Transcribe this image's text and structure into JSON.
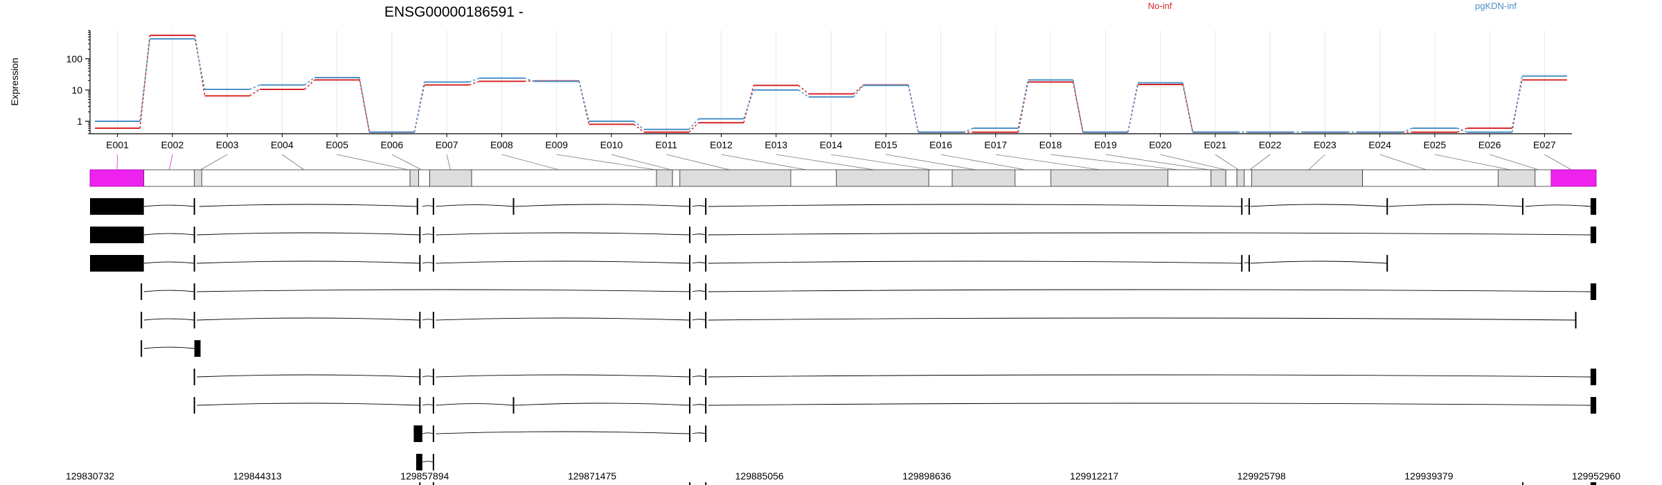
{
  "chart_data": {
    "type": "line",
    "title": "ENSG00000186591 -",
    "ylabel": "Expression",
    "y_scale": "log10",
    "ylim": [
      0.4,
      800
    ],
    "y_ticks": [
      {
        "value": 1,
        "label": "1"
      },
      {
        "value": 10,
        "label": "10"
      },
      {
        "value": 100,
        "label": "100"
      }
    ],
    "categories": [
      "E001",
      "E002",
      "E003",
      "E004",
      "E005",
      "E006",
      "E007",
      "E008",
      "E009",
      "E010",
      "E011",
      "E012",
      "E013",
      "E014",
      "E015",
      "E016",
      "E017",
      "E018",
      "E019",
      "E020",
      "E021",
      "E022",
      "E023",
      "E024",
      "E025",
      "E026",
      "E027"
    ],
    "series": [
      {
        "name": "No-inf",
        "color": "#d62728",
        "values": [
          0.6,
          560,
          6.5,
          10.5,
          21,
          0.45,
          14.5,
          19,
          19.5,
          0.8,
          0.45,
          0.9,
          14,
          7.5,
          14.5,
          0.45,
          0.45,
          18,
          0.45,
          15,
          0.45,
          0.45,
          0.45,
          0.45,
          0.45,
          0.6,
          21
        ]
      },
      {
        "name": "pgKDN-inf",
        "color": "#4a90c8",
        "values": [
          1.0,
          430,
          10.5,
          14.5,
          25,
          0.45,
          18,
          24,
          19,
          1.0,
          0.55,
          1.2,
          10,
          6,
          14,
          0.45,
          0.6,
          21,
          0.45,
          17,
          0.45,
          0.45,
          0.45,
          0.45,
          0.6,
          0.45,
          28
        ]
      }
    ],
    "legend": "top",
    "grid": "vertical",
    "genomic_ticks": [
      "129830732",
      "129844313",
      "129857894",
      "129871475",
      "129885056",
      "129898636",
      "129912217",
      "129925798",
      "129939379",
      "129952960"
    ],
    "genomic_range": [
      129830732,
      129952960
    ],
    "exon_blocks_bp": [
      [
        129830732,
        129835100
      ],
      [
        129835100,
        129839200
      ],
      [
        129839200,
        129839800
      ],
      [
        129839800,
        129856700
      ],
      [
        129856700,
        129857400
      ],
      [
        129857400,
        129858300
      ],
      [
        129858300,
        129861700
      ],
      [
        129861700,
        129876700
      ],
      [
        129876700,
        129878000
      ],
      [
        129878000,
        129878600
      ],
      [
        129878600,
        129887600
      ],
      [
        129887600,
        129891300
      ],
      [
        129891300,
        129898800
      ],
      [
        129898800,
        129900700
      ],
      [
        129900700,
        129905800
      ],
      [
        129905800,
        129908700
      ],
      [
        129908700,
        129918200
      ],
      [
        129918200,
        129921700
      ],
      [
        129921700,
        129922900
      ],
      [
        129922900,
        129923800
      ],
      [
        129923800,
        129924400
      ],
      [
        129924400,
        129925000
      ],
      [
        129925000,
        129934000
      ],
      [
        129934000,
        129945000
      ],
      [
        129945000,
        129948000
      ],
      [
        129948000,
        129949300
      ],
      [
        129949300,
        129952960
      ]
    ],
    "transcripts": [
      {
        "exons": [
          [
            129830732,
            129835100,
            1
          ],
          [
            129839200,
            129839600,
            0
          ],
          [
            129857300,
            129857700,
            0
          ],
          [
            129858600,
            129858800,
            0
          ],
          [
            129865100,
            129865200,
            0
          ],
          [
            129879400,
            129879600,
            0
          ],
          [
            129880700,
            129880900,
            0
          ],
          [
            129924200,
            129924400,
            0
          ],
          [
            129924800,
            129924900,
            0
          ],
          [
            129936000,
            129936100,
            0
          ],
          [
            129947000,
            129947200,
            0
          ],
          [
            129952500,
            129952960,
            1
          ]
        ]
      },
      {
        "exons": [
          [
            129830732,
            129835100,
            1
          ],
          [
            129839200,
            129839400,
            0
          ],
          [
            129857500,
            129857700,
            0
          ],
          [
            129858600,
            129858800,
            0
          ],
          [
            129879400,
            129879600,
            0
          ],
          [
            129880700,
            129880900,
            0
          ],
          [
            129952500,
            129952960,
            1
          ]
        ]
      },
      {
        "exons": [
          [
            129830732,
            129835100,
            1
          ],
          [
            129839200,
            129839400,
            0
          ],
          [
            129857500,
            129857700,
            0
          ],
          [
            129858600,
            129858800,
            0
          ],
          [
            129879400,
            129879600,
            0
          ],
          [
            129880700,
            129880900,
            0
          ],
          [
            129924200,
            129924400,
            0
          ],
          [
            129924800,
            129924900,
            0
          ],
          [
            129936000,
            129936100,
            0
          ]
        ]
      },
      {
        "exons": [
          [
            129834900,
            129835100,
            0
          ],
          [
            129839200,
            129839400,
            0
          ],
          [
            129879400,
            129879600,
            0
          ],
          [
            129880700,
            129880900,
            0
          ],
          [
            129952500,
            129952960,
            1
          ]
        ]
      },
      {
        "exons": [
          [
            129834900,
            129835100,
            0
          ],
          [
            129839200,
            129839400,
            0
          ],
          [
            129857500,
            129857700,
            0
          ],
          [
            129858600,
            129858800,
            0
          ],
          [
            129879400,
            129879600,
            0
          ],
          [
            129880700,
            129880900,
            0
          ],
          [
            129951300,
            129951400,
            0
          ]
        ]
      },
      {
        "exons": [
          [
            129834900,
            129835100,
            0
          ],
          [
            129839200,
            129839700,
            1
          ]
        ]
      },
      {
        "exons": [
          [
            129839200,
            129839400,
            0
          ],
          [
            129857500,
            129857700,
            0
          ],
          [
            129858600,
            129858800,
            0
          ],
          [
            129879400,
            129879600,
            0
          ],
          [
            129880700,
            129880900,
            0
          ],
          [
            129952500,
            129952960,
            1
          ]
        ]
      },
      {
        "exons": [
          [
            129839200,
            129839400,
            0
          ],
          [
            129857500,
            129857700,
            0
          ],
          [
            129858600,
            129858800,
            0
          ],
          [
            129865100,
            129865200,
            0
          ],
          [
            129879400,
            129879600,
            0
          ],
          [
            129880700,
            129880900,
            0
          ],
          [
            129952500,
            129952960,
            1
          ]
        ]
      },
      {
        "exons": [
          [
            129857000,
            129857700,
            1
          ],
          [
            129858600,
            129858800,
            0
          ],
          [
            129879400,
            129879600,
            0
          ],
          [
            129880700,
            129880900,
            0
          ]
        ]
      },
      {
        "exons": [
          [
            129857200,
            129857700,
            1
          ],
          [
            129858600,
            129858800,
            0
          ]
        ]
      },
      {
        "exons": [
          [
            129857500,
            129857700,
            0
          ],
          [
            129858600,
            129858800,
            0
          ],
          [
            129879400,
            129879600,
            0
          ],
          [
            129880700,
            129880900,
            0
          ],
          [
            129947000,
            129947200,
            0
          ],
          [
            129952500,
            129952960,
            1
          ]
        ]
      }
    ]
  }
}
